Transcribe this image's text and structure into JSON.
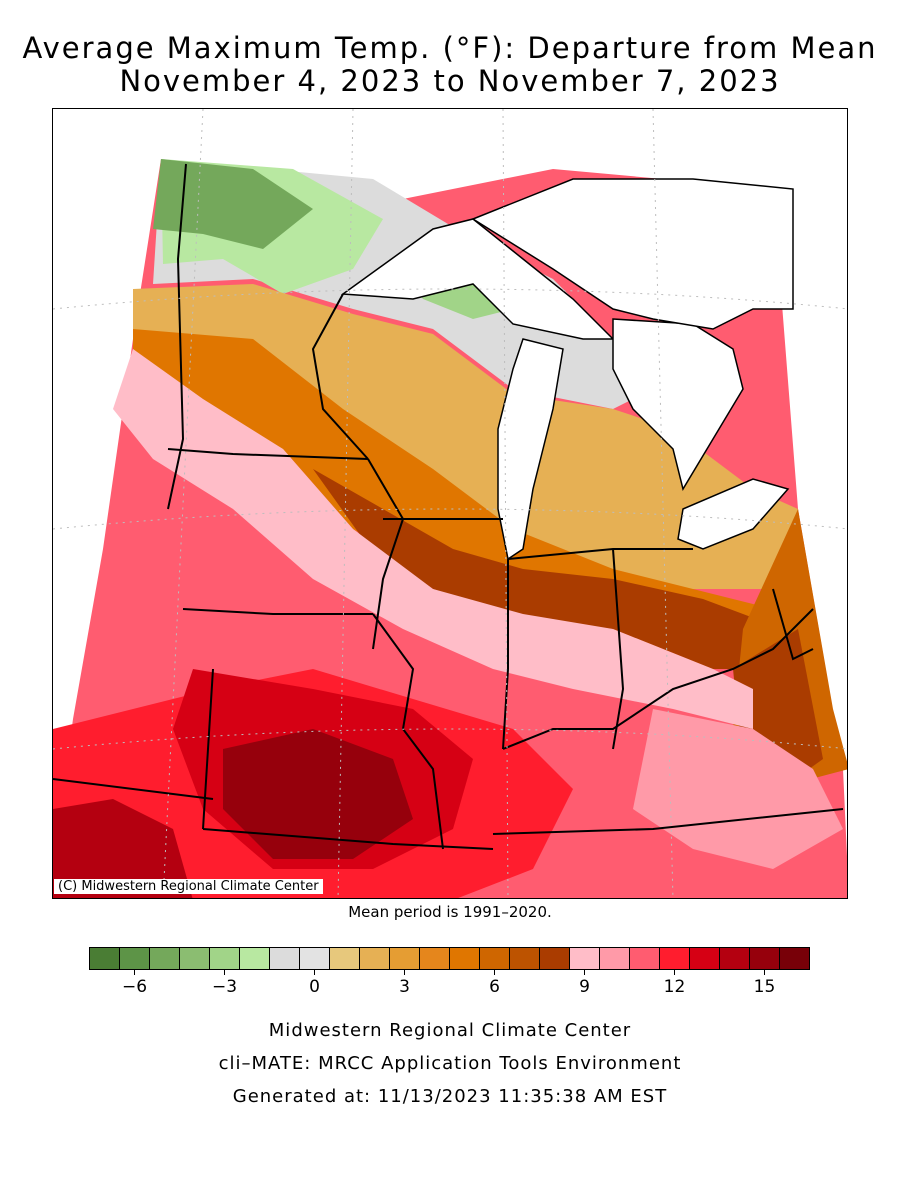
{
  "title": {
    "line1": "Average Maximum Temp. (°F): Departure from Mean",
    "line2": "November 4, 2023 to November 7, 2023"
  },
  "map": {
    "copyright": "(C) Midwestern Regional Climate Center",
    "mean_period": "Mean period is 1991–2020.",
    "colors": {
      "lake": "#ffffff",
      "border": "#000000",
      "graticule": "#bdbdbd"
    }
  },
  "legend": {
    "colors": [
      "#4a7d34",
      "#5d9447",
      "#74a85b",
      "#8bbd71",
      "#a1d488",
      "#b8e8a1",
      "#dcdcdc",
      "#e3e3e3",
      "#e7c87c",
      "#e6b054",
      "#e59d33",
      "#e5861c",
      "#e07600",
      "#cf6600",
      "#bd5300",
      "#aa3c00",
      "#ffbdc8",
      "#ff9aa8",
      "#ff5c70",
      "#ff1d2e",
      "#d60014",
      "#b40010",
      "#96000c",
      "#780008"
    ],
    "tick_labels": [
      "−6",
      "−3",
      "0",
      "3",
      "6",
      "9",
      "12",
      "15"
    ],
    "tick_values": [
      -6,
      -3,
      0,
      3,
      6,
      9,
      12,
      15
    ]
  },
  "footer": {
    "line1": "Midwestern Regional Climate Center",
    "line2": "cli–MATE: MRCC Application Tools Environment",
    "line3": "Generated at: 11/13/2023 11:35:38 AM EST"
  }
}
